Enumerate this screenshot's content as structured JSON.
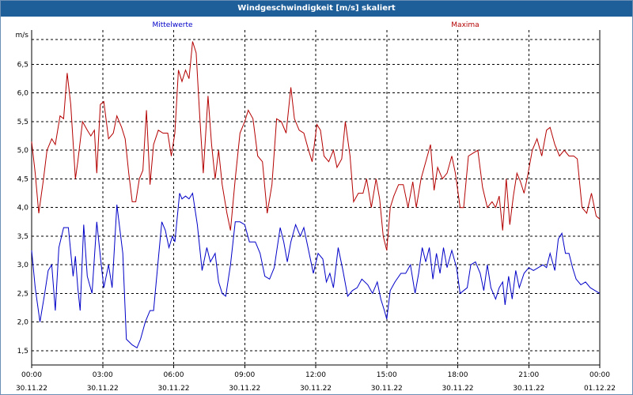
{
  "window": {
    "title": "Windgeschwindigkeit [m/s] skaliert"
  },
  "chart_data": {
    "type": "line",
    "title": "Windgeschwindigkeit [m/s] skaliert",
    "ylabel": "m/s",
    "xlabel": "",
    "grid": true,
    "legend_placement": "top",
    "ylim": [
      1.25,
      7.1
    ],
    "y_ticks": [
      "1,5",
      "2,0",
      "2,5",
      "3,0",
      "3,5",
      "4,0",
      "4,5",
      "5,0",
      "5,5",
      "6,0",
      "6,5"
    ],
    "x_ticks": [
      {
        "time": "00:00",
        "date": "30.11.22"
      },
      {
        "time": "03:00",
        "date": "30.11.22"
      },
      {
        "time": "06:00",
        "date": "30.11.22"
      },
      {
        "time": "09:00",
        "date": "30.11.22"
      },
      {
        "time": "12:00",
        "date": "30.11.22"
      },
      {
        "time": "15:00",
        "date": "30.11.22"
      },
      {
        "time": "18:00",
        "date": "30.11.22"
      },
      {
        "time": "21:00",
        "date": "30.11.22"
      },
      {
        "time": "00:00",
        "date": "01.12.22"
      }
    ],
    "x_range_hours": [
      0,
      24
    ],
    "series": [
      {
        "name": "Mittelwerte",
        "color": "#0000c8",
        "points": [
          [
            0.0,
            3.25
          ],
          [
            0.15,
            2.6
          ],
          [
            0.35,
            2.0
          ],
          [
            0.55,
            2.5
          ],
          [
            0.7,
            2.9
          ],
          [
            0.85,
            3.0
          ],
          [
            1.0,
            2.2
          ],
          [
            1.15,
            3.3
          ],
          [
            1.35,
            3.65
          ],
          [
            1.55,
            3.65
          ],
          [
            1.75,
            2.8
          ],
          [
            1.85,
            3.15
          ],
          [
            1.95,
            2.6
          ],
          [
            2.05,
            2.2
          ],
          [
            2.2,
            3.7
          ],
          [
            2.35,
            2.8
          ],
          [
            2.55,
            2.5
          ],
          [
            2.75,
            3.75
          ],
          [
            2.9,
            3.15
          ],
          [
            3.05,
            2.6
          ],
          [
            3.25,
            3.0
          ],
          [
            3.4,
            2.6
          ],
          [
            3.6,
            4.05
          ],
          [
            3.85,
            3.2
          ],
          [
            4.0,
            1.7
          ],
          [
            4.25,
            1.6
          ],
          [
            4.45,
            1.55
          ],
          [
            4.6,
            1.7
          ],
          [
            4.8,
            2.0
          ],
          [
            5.0,
            2.2
          ],
          [
            5.15,
            2.2
          ],
          [
            5.35,
            3.1
          ],
          [
            5.5,
            3.75
          ],
          [
            5.65,
            3.6
          ],
          [
            5.8,
            3.3
          ],
          [
            5.95,
            3.5
          ],
          [
            6.05,
            3.4
          ],
          [
            6.25,
            4.25
          ],
          [
            6.35,
            4.15
          ],
          [
            6.5,
            4.2
          ],
          [
            6.65,
            4.15
          ],
          [
            6.8,
            4.25
          ],
          [
            7.0,
            3.7
          ],
          [
            7.2,
            2.9
          ],
          [
            7.4,
            3.3
          ],
          [
            7.55,
            3.05
          ],
          [
            7.75,
            3.2
          ],
          [
            7.9,
            2.7
          ],
          [
            8.05,
            2.5
          ],
          [
            8.2,
            2.45
          ],
          [
            8.4,
            3.0
          ],
          [
            8.6,
            3.75
          ],
          [
            8.8,
            3.75
          ],
          [
            9.0,
            3.7
          ],
          [
            9.2,
            3.4
          ],
          [
            9.45,
            3.4
          ],
          [
            9.65,
            3.2
          ],
          [
            9.85,
            2.8
          ],
          [
            10.05,
            2.75
          ],
          [
            10.25,
            2.95
          ],
          [
            10.5,
            3.65
          ],
          [
            10.65,
            3.4
          ],
          [
            10.8,
            3.05
          ],
          [
            10.95,
            3.4
          ],
          [
            11.15,
            3.7
          ],
          [
            11.35,
            3.5
          ],
          [
            11.5,
            3.65
          ],
          [
            11.7,
            3.25
          ],
          [
            11.9,
            2.85
          ],
          [
            12.1,
            3.2
          ],
          [
            12.3,
            3.1
          ],
          [
            12.45,
            2.7
          ],
          [
            12.6,
            2.85
          ],
          [
            12.75,
            2.6
          ],
          [
            12.95,
            3.3
          ],
          [
            13.15,
            2.9
          ],
          [
            13.35,
            2.45
          ],
          [
            13.55,
            2.55
          ],
          [
            13.75,
            2.6
          ],
          [
            13.95,
            2.75
          ],
          [
            14.2,
            2.65
          ],
          [
            14.4,
            2.5
          ],
          [
            14.6,
            2.7
          ],
          [
            14.75,
            2.4
          ],
          [
            14.9,
            2.2
          ],
          [
            15.0,
            2.05
          ],
          [
            15.15,
            2.55
          ],
          [
            15.35,
            2.7
          ],
          [
            15.6,
            2.85
          ],
          [
            15.8,
            2.85
          ],
          [
            16.0,
            3.0
          ],
          [
            16.2,
            2.5
          ],
          [
            16.35,
            2.85
          ],
          [
            16.5,
            3.3
          ],
          [
            16.65,
            3.05
          ],
          [
            16.8,
            3.3
          ],
          [
            16.95,
            2.75
          ],
          [
            17.1,
            3.2
          ],
          [
            17.25,
            2.85
          ],
          [
            17.4,
            3.3
          ],
          [
            17.55,
            2.95
          ],
          [
            17.75,
            3.25
          ],
          [
            17.95,
            2.95
          ],
          [
            18.1,
            2.5
          ],
          [
            18.25,
            2.55
          ],
          [
            18.4,
            2.6
          ],
          [
            18.55,
            3.0
          ],
          [
            18.75,
            3.05
          ],
          [
            18.95,
            2.85
          ],
          [
            19.1,
            2.55
          ],
          [
            19.25,
            3.0
          ],
          [
            19.4,
            2.6
          ],
          [
            19.6,
            2.4
          ],
          [
            19.75,
            2.6
          ],
          [
            19.9,
            2.7
          ],
          [
            20.0,
            2.3
          ],
          [
            20.15,
            2.8
          ],
          [
            20.3,
            2.4
          ],
          [
            20.45,
            2.9
          ],
          [
            20.6,
            2.6
          ],
          [
            20.8,
            2.85
          ],
          [
            21.0,
            2.95
          ],
          [
            21.2,
            2.9
          ],
          [
            21.4,
            2.95
          ],
          [
            21.6,
            3.0
          ],
          [
            21.75,
            2.95
          ],
          [
            21.9,
            3.2
          ],
          [
            22.1,
            2.9
          ],
          [
            22.25,
            3.45
          ],
          [
            22.4,
            3.55
          ],
          [
            22.55,
            3.2
          ],
          [
            22.7,
            3.2
          ],
          [
            22.85,
            2.95
          ],
          [
            23.0,
            2.75
          ],
          [
            23.2,
            2.65
          ],
          [
            23.4,
            2.7
          ],
          [
            23.6,
            2.6
          ],
          [
            23.8,
            2.55
          ],
          [
            24.0,
            2.5
          ]
        ]
      },
      {
        "name": "Maxima",
        "color": "#b40000",
        "points": [
          [
            0.0,
            5.15
          ],
          [
            0.15,
            4.6
          ],
          [
            0.3,
            3.9
          ],
          [
            0.5,
            4.5
          ],
          [
            0.65,
            5.0
          ],
          [
            0.85,
            5.2
          ],
          [
            1.0,
            5.1
          ],
          [
            1.2,
            5.6
          ],
          [
            1.35,
            5.55
          ],
          [
            1.5,
            6.35
          ],
          [
            1.65,
            5.8
          ],
          [
            1.85,
            4.5
          ],
          [
            1.95,
            4.8
          ],
          [
            2.15,
            5.5
          ],
          [
            2.35,
            5.35
          ],
          [
            2.5,
            5.25
          ],
          [
            2.65,
            5.35
          ],
          [
            2.75,
            4.6
          ],
          [
            2.9,
            5.8
          ],
          [
            3.05,
            5.85
          ],
          [
            3.25,
            5.2
          ],
          [
            3.45,
            5.3
          ],
          [
            3.6,
            5.6
          ],
          [
            3.8,
            5.4
          ],
          [
            3.95,
            5.2
          ],
          [
            4.1,
            4.6
          ],
          [
            4.25,
            4.1
          ],
          [
            4.4,
            4.1
          ],
          [
            4.55,
            4.5
          ],
          [
            4.7,
            4.65
          ],
          [
            4.85,
            5.7
          ],
          [
            5.0,
            4.4
          ],
          [
            5.15,
            5.1
          ],
          [
            5.35,
            5.35
          ],
          [
            5.55,
            5.3
          ],
          [
            5.75,
            5.3
          ],
          [
            5.9,
            4.9
          ],
          [
            6.05,
            5.3
          ],
          [
            6.2,
            6.4
          ],
          [
            6.35,
            6.2
          ],
          [
            6.5,
            6.4
          ],
          [
            6.65,
            6.25
          ],
          [
            6.8,
            6.9
          ],
          [
            6.95,
            6.7
          ],
          [
            7.1,
            5.6
          ],
          [
            7.25,
            4.6
          ],
          [
            7.45,
            5.95
          ],
          [
            7.6,
            5.1
          ],
          [
            7.75,
            4.5
          ],
          [
            7.9,
            5.0
          ],
          [
            8.05,
            4.4
          ],
          [
            8.25,
            3.9
          ],
          [
            8.4,
            3.6
          ],
          [
            8.6,
            4.5
          ],
          [
            8.8,
            5.3
          ],
          [
            9.0,
            5.5
          ],
          [
            9.15,
            5.7
          ],
          [
            9.35,
            5.55
          ],
          [
            9.55,
            4.9
          ],
          [
            9.75,
            4.8
          ],
          [
            9.95,
            3.9
          ],
          [
            10.15,
            4.4
          ],
          [
            10.35,
            5.55
          ],
          [
            10.55,
            5.5
          ],
          [
            10.75,
            5.3
          ],
          [
            10.95,
            6.1
          ],
          [
            11.1,
            5.55
          ],
          [
            11.3,
            5.35
          ],
          [
            11.5,
            5.3
          ],
          [
            11.7,
            5.0
          ],
          [
            11.85,
            4.8
          ],
          [
            12.05,
            5.45
          ],
          [
            12.2,
            5.35
          ],
          [
            12.35,
            4.9
          ],
          [
            12.55,
            4.8
          ],
          [
            12.75,
            5.0
          ],
          [
            12.9,
            4.7
          ],
          [
            13.1,
            4.85
          ],
          [
            13.25,
            5.5
          ],
          [
            13.45,
            4.9
          ],
          [
            13.6,
            4.1
          ],
          [
            13.8,
            4.25
          ],
          [
            14.0,
            4.25
          ],
          [
            14.15,
            4.5
          ],
          [
            14.35,
            4.0
          ],
          [
            14.55,
            4.5
          ],
          [
            14.7,
            4.15
          ],
          [
            14.85,
            3.5
          ],
          [
            15.0,
            3.25
          ],
          [
            15.15,
            4.0
          ],
          [
            15.3,
            4.2
          ],
          [
            15.5,
            4.4
          ],
          [
            15.7,
            4.4
          ],
          [
            15.9,
            4.0
          ],
          [
            16.1,
            4.45
          ],
          [
            16.25,
            4.0
          ],
          [
            16.45,
            4.5
          ],
          [
            16.65,
            4.8
          ],
          [
            16.85,
            5.1
          ],
          [
            17.0,
            4.3
          ],
          [
            17.15,
            4.7
          ],
          [
            17.35,
            4.5
          ],
          [
            17.55,
            4.6
          ],
          [
            17.75,
            4.9
          ],
          [
            17.9,
            4.6
          ],
          [
            18.1,
            4.0
          ],
          [
            18.25,
            4.0
          ],
          [
            18.45,
            4.9
          ],
          [
            18.65,
            4.95
          ],
          [
            18.85,
            5.0
          ],
          [
            19.05,
            4.35
          ],
          [
            19.25,
            4.0
          ],
          [
            19.45,
            4.1
          ],
          [
            19.6,
            4.0
          ],
          [
            19.75,
            4.2
          ],
          [
            19.9,
            3.6
          ],
          [
            20.05,
            4.5
          ],
          [
            20.2,
            3.7
          ],
          [
            20.35,
            4.2
          ],
          [
            20.5,
            4.6
          ],
          [
            20.65,
            4.45
          ],
          [
            20.8,
            4.25
          ],
          [
            20.95,
            4.55
          ],
          [
            21.15,
            5.0
          ],
          [
            21.35,
            5.2
          ],
          [
            21.55,
            4.9
          ],
          [
            21.75,
            5.35
          ],
          [
            21.9,
            5.4
          ],
          [
            22.1,
            5.1
          ],
          [
            22.3,
            4.9
          ],
          [
            22.5,
            5.0
          ],
          [
            22.7,
            4.9
          ],
          [
            22.9,
            4.9
          ],
          [
            23.05,
            4.85
          ],
          [
            23.25,
            4.0
          ],
          [
            23.45,
            3.9
          ],
          [
            23.65,
            4.25
          ],
          [
            23.85,
            3.85
          ],
          [
            24.0,
            3.8
          ]
        ]
      }
    ]
  }
}
